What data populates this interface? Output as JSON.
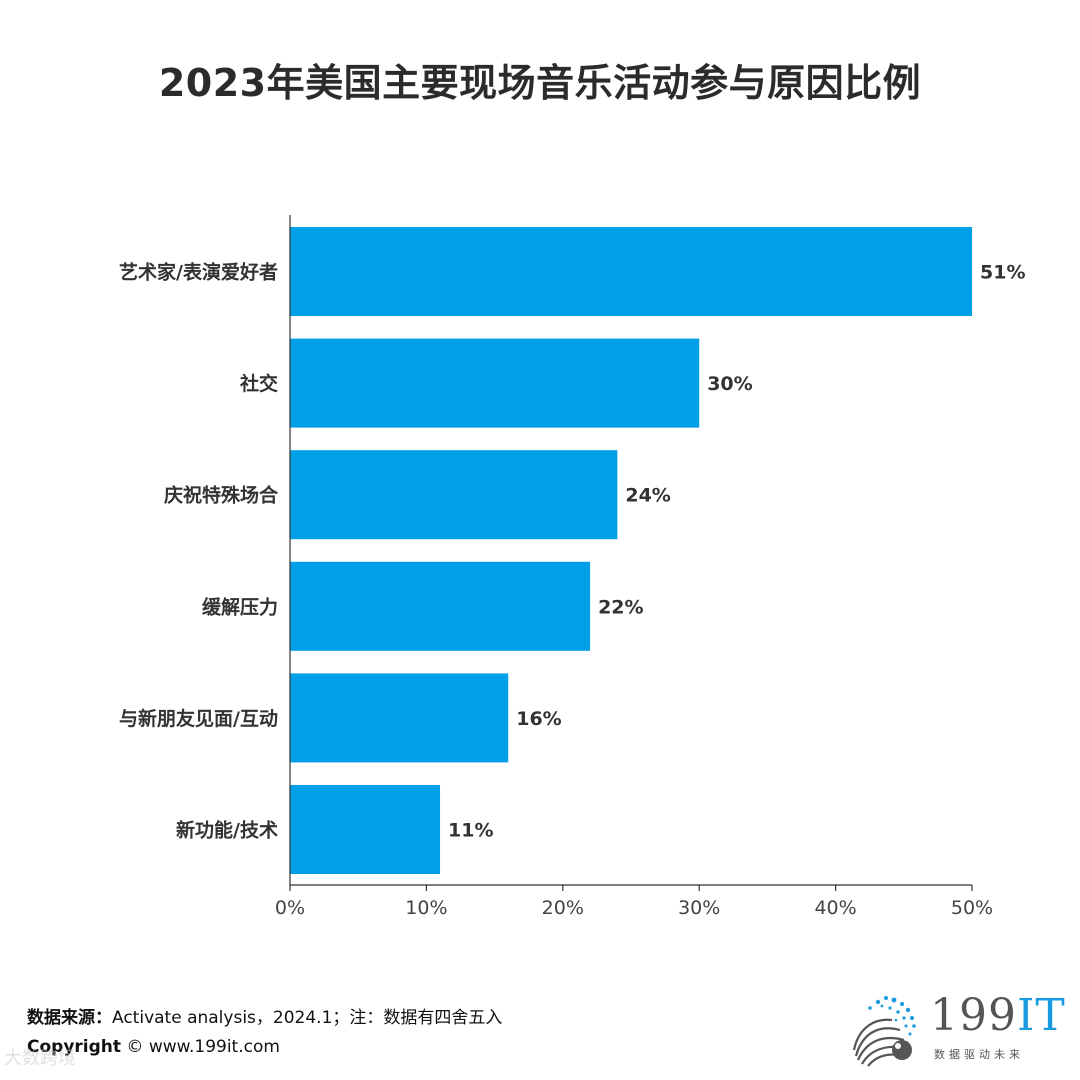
{
  "title": "2023年美国主要现场音乐活动参与原因比例",
  "chart_data": {
    "type": "bar",
    "orientation": "horizontal",
    "categories": [
      "艺术家/表演爱好者",
      "社交",
      "庆祝特殊场合",
      "缓解压力",
      "与新朋友见面/互动",
      "新功能/技术"
    ],
    "values": [
      51,
      30,
      24,
      22,
      16,
      11
    ],
    "value_labels": [
      "51%",
      "30%",
      "24%",
      "22%",
      "16%",
      "11%"
    ],
    "xlim": [
      0,
      50
    ],
    "xticks": [
      0,
      10,
      20,
      30,
      40,
      50
    ],
    "xtick_labels": [
      "0%",
      "10%",
      "20%",
      "30%",
      "40%",
      "50%"
    ],
    "bar_color": "#00a0e9",
    "grid": false,
    "legend": "none"
  },
  "footer": {
    "source_label": "数据来源：",
    "source_text": "Activate analysis，2024.1；注：数据有四舍五入",
    "copyright_label": "Copyright",
    "copyright_text": " ©  www.199it.com"
  },
  "logo": {
    "name_prefix": "199",
    "name_suffix": "IT",
    "tagline": "数据驱动未来",
    "accent_color": "#1a9be0"
  },
  "watermark": "大数跨境"
}
